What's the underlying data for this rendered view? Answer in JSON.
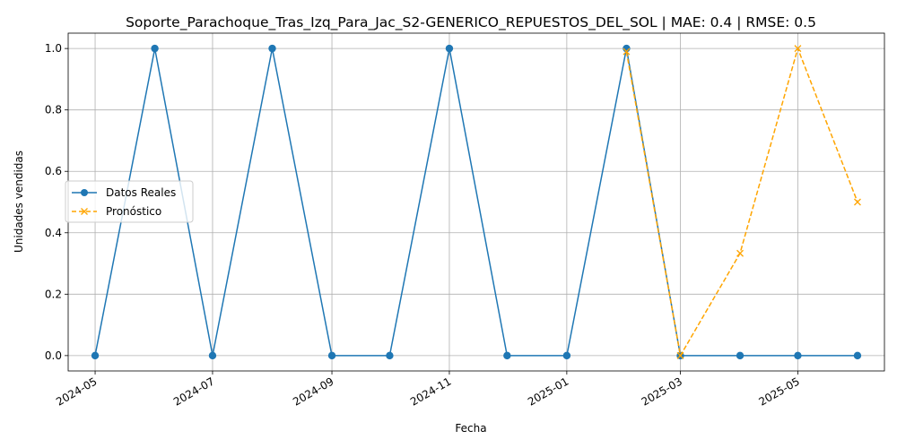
{
  "chart_data": {
    "type": "line",
    "title": "Soporte_Parachoque_Tras_Izq_Para_Jac_S2-GENERICO_REPUESTOS_DEL_SOL | MAE: 0.4 | RMSE: 0.5",
    "xlabel": "Fecha",
    "ylabel": "Unidades vendidas",
    "ylim": [
      -0.05,
      1.05
    ],
    "xlim": [
      "2024-04-17",
      "2025-06-15"
    ],
    "grid": true,
    "legend_position": "center-left",
    "x_ticks": [
      "2024-05",
      "2024-07",
      "2024-09",
      "2024-11",
      "2025-01",
      "2025-03",
      "2025-05"
    ],
    "y_ticks": [
      "0.0",
      "0.2",
      "0.4",
      "0.6",
      "0.8",
      "1.0"
    ],
    "series": [
      {
        "name": "Datos Reales",
        "color": "#1f77b4",
        "style": "solid",
        "marker": "circle",
        "x": [
          "2024-05-01",
          "2024-06-01",
          "2024-07-01",
          "2024-08-01",
          "2024-09-01",
          "2024-10-01",
          "2024-11-01",
          "2024-12-01",
          "2025-01-01",
          "2025-02-01",
          "2025-03-01",
          "2025-04-01",
          "2025-05-01",
          "2025-06-01"
        ],
        "values": [
          0,
          1,
          0,
          1,
          0,
          0,
          1,
          0,
          0,
          1,
          0,
          0,
          0,
          0
        ]
      },
      {
        "name": "Pronóstico",
        "color": "#ffa500",
        "style": "dashed",
        "marker": "x",
        "x": [
          "2025-02-01",
          "2025-03-01",
          "2025-04-01",
          "2025-05-01",
          "2025-06-01"
        ],
        "values": [
          0.99,
          0.0,
          0.333,
          1.0,
          0.5
        ]
      }
    ]
  }
}
